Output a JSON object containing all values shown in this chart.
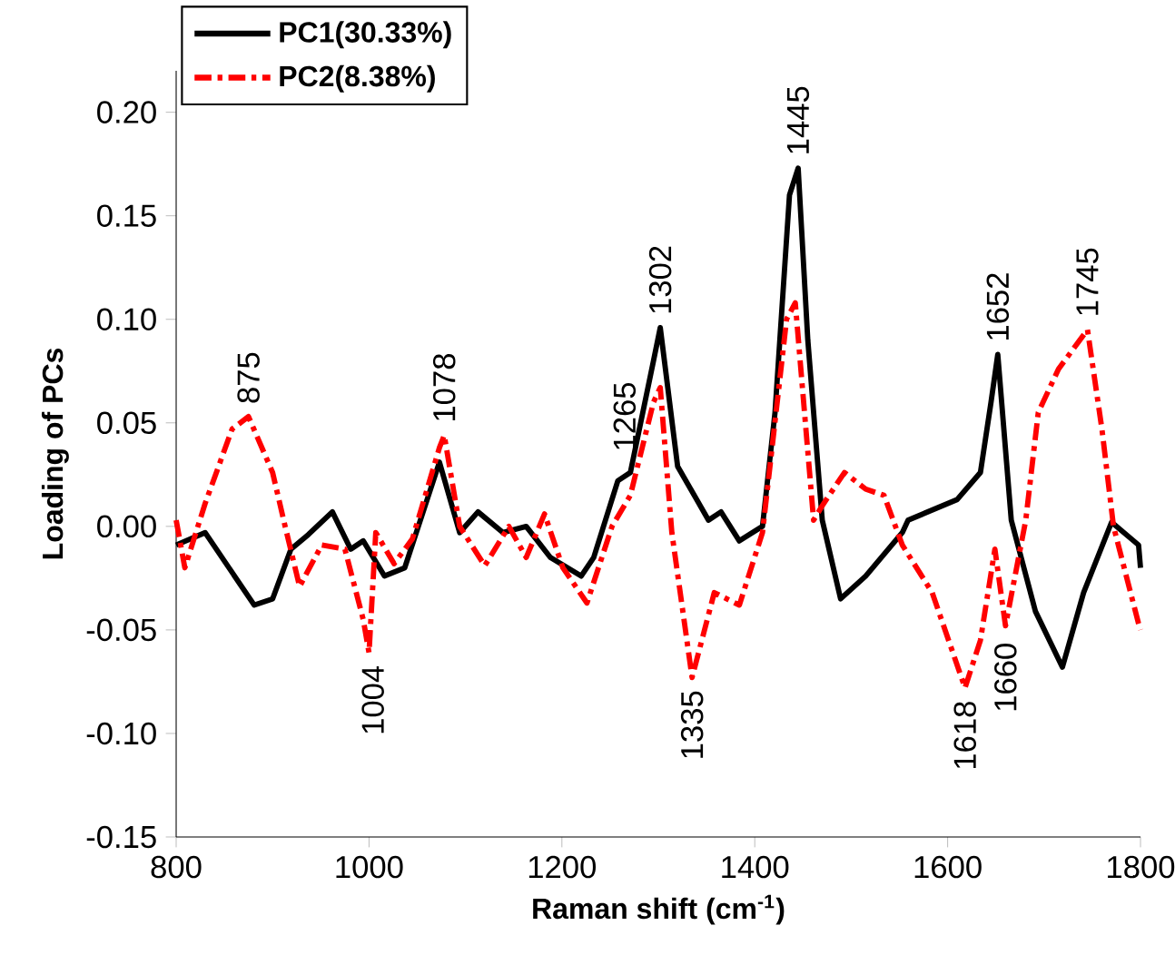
{
  "chart_data": {
    "type": "line",
    "xlabel": "Raman shift (cm$^{-1}$)",
    "ylabel": "Loading of PCs",
    "xlim": [
      800,
      1800
    ],
    "ylim": [
      -0.15,
      0.22
    ],
    "xticks": [
      800,
      1000,
      1200,
      1400,
      1600,
      1800
    ],
    "yticks": [
      {
        "value": -0.15,
        "label": "-0.15"
      },
      {
        "value": -0.1,
        "label": "-0.10"
      },
      {
        "value": -0.05,
        "label": "-0.05"
      },
      {
        "value": 0,
        "label": "0.00"
      },
      {
        "value": 0.05,
        "label": "0.05"
      },
      {
        "value": 0.1,
        "label": "0.10"
      },
      {
        "value": 0.15,
        "label": "0.15"
      },
      {
        "value": 0.2,
        "label": "0.20"
      }
    ],
    "grid": false,
    "legend": "top left",
    "marker": "none",
    "series": [
      {
        "name": "PC1(30.33%)",
        "color": "#000000",
        "line_style": "solid",
        "x": [
          800,
          830,
          881,
          900,
          919,
          937,
          962,
          981,
          994,
          1016,
          1037,
          1073,
          1094,
          1113,
          1139,
          1163,
          1188,
          1220,
          1233,
          1258,
          1271,
          1295,
          1302,
          1320,
          1352,
          1365,
          1384,
          1408,
          1421,
          1436,
          1445,
          1455,
          1470,
          1489,
          1515,
          1553,
          1559,
          1610,
          1634,
          1645,
          1652,
          1666,
          1691,
          1719,
          1741,
          1770,
          1798,
          1800
        ],
        "values": [
          -0.009,
          -0.003,
          -0.038,
          -0.035,
          -0.011,
          -0.004,
          0.007,
          -0.011,
          -0.007,
          -0.024,
          -0.02,
          0.031,
          -0.003,
          0.007,
          -0.003,
          0,
          -0.015,
          -0.024,
          -0.015,
          0.022,
          0.026,
          0.08,
          0.096,
          0.029,
          0.003,
          0.007,
          -0.007,
          0,
          0.055,
          0.16,
          0.173,
          0.09,
          0.003,
          -0.035,
          -0.024,
          -0.003,
          0.003,
          0.013,
          0.026,
          0.06,
          0.083,
          0.003,
          -0.041,
          -0.068,
          -0.032,
          0.002,
          -0.009,
          -0.02
        ]
      },
      {
        "name": "PC2(8.38%)",
        "color": "#ff0000",
        "line_style": "dashed",
        "x": [
          800,
          809,
          830,
          858,
          875,
          900,
          913,
          928,
          951,
          975,
          994,
          1000,
          1007,
          1026,
          1045,
          1073,
          1078,
          1094,
          1120,
          1145,
          1163,
          1182,
          1201,
          1226,
          1252,
          1271,
          1295,
          1302,
          1314,
          1335,
          1358,
          1384,
          1408,
          1433,
          1442,
          1461,
          1470,
          1493,
          1515,
          1534,
          1553,
          1584,
          1618,
          1634,
          1649,
          1660,
          1681,
          1694,
          1715,
          1745,
          1760,
          1772,
          1798,
          1800
        ],
        "values": [
          0.003,
          -0.02,
          0.011,
          0.047,
          0.053,
          0.026,
          0,
          -0.029,
          -0.009,
          -0.011,
          -0.045,
          -0.061,
          -0.003,
          -0.018,
          -0.006,
          0.038,
          0.044,
          0,
          -0.019,
          0,
          -0.015,
          0.006,
          -0.02,
          -0.037,
          0,
          0.015,
          0.06,
          0.067,
          -0.003,
          -0.073,
          -0.032,
          -0.038,
          -0.003,
          0.1,
          0.108,
          0.003,
          0.01,
          0.026,
          0.018,
          0.015,
          -0.009,
          -0.032,
          -0.078,
          -0.055,
          -0.011,
          -0.048,
          0.003,
          0.055,
          0.076,
          0.095,
          0.047,
          0,
          -0.047,
          -0.05
        ]
      }
    ],
    "annotations": [
      {
        "text": "875",
        "x": 875,
        "y": 0.053
      },
      {
        "text": "1004",
        "x": 1004,
        "y": -0.061
      },
      {
        "text": "1078",
        "x": 1078,
        "y": 0.044
      },
      {
        "text": "1265",
        "x": 1265,
        "y": 0.03
      },
      {
        "text": "1302",
        "x": 1302,
        "y": 0.096
      },
      {
        "text": "1335",
        "x": 1335,
        "y": -0.073
      },
      {
        "text": "1445",
        "x": 1445,
        "y": 0.173
      },
      {
        "text": "1618",
        "x": 1618,
        "y": -0.078
      },
      {
        "text": "1652",
        "x": 1652,
        "y": 0.083
      },
      {
        "text": "1660",
        "x": 1660,
        "y": -0.05
      },
      {
        "text": "1745",
        "x": 1745,
        "y": 0.095
      }
    ]
  }
}
